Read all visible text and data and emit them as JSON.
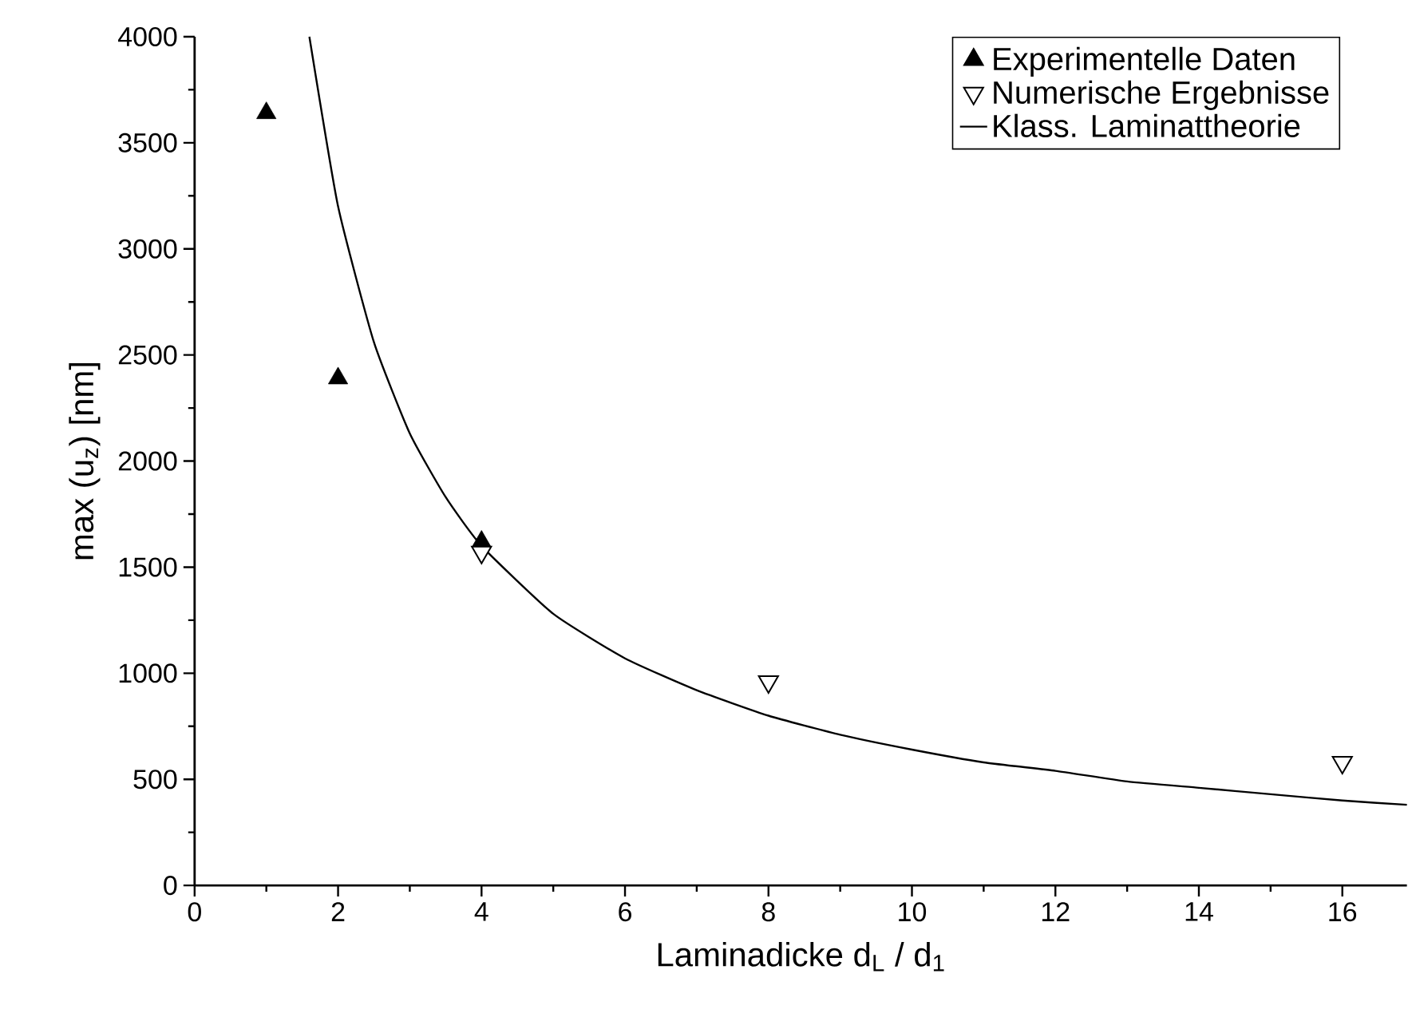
{
  "chart_data": {
    "type": "scatter",
    "xlabel": "Laminadicke d$_{L}$ / d$_{1}$",
    "ylabel": "max (u$_{z}$) [nm]",
    "xlim": [
      0,
      16.9
    ],
    "ylim": [
      0,
      4000
    ],
    "xticks": [
      0,
      2,
      4,
      6,
      8,
      10,
      12,
      14,
      16
    ],
    "yticks": [
      0,
      500,
      1000,
      1500,
      2000,
      2500,
      3000,
      3500,
      4000
    ],
    "grid": false,
    "legend": "top right",
    "series": [
      {
        "name": "Experimentelle Daten",
        "marker": "triangle",
        "color": "#000000",
        "x": [
          1,
          2,
          4
        ],
        "values": [
          3640,
          2390,
          1620
        ]
      },
      {
        "name": "Numerische Ergebnisse",
        "marker": "triangle-down",
        "color": "#ffffff",
        "x": [
          4,
          8,
          16
        ],
        "values": [
          1570,
          960,
          580
        ]
      },
      {
        "name": "Klass. Laminattheorie",
        "type": "line",
        "marker": "none",
        "line_style": "solid",
        "color": "#000000",
        "x": [
          1.6,
          2,
          2.5,
          3,
          3.5,
          4,
          5,
          6,
          7,
          8,
          9,
          10,
          11,
          12,
          13,
          14,
          15,
          16,
          16.9
        ],
        "values": [
          4000,
          3200,
          2560,
          2130,
          1830,
          1600,
          1280,
          1070,
          920,
          800,
          710,
          640,
          580,
          540,
          490,
          460,
          430,
          400,
          380
        ]
      }
    ]
  }
}
